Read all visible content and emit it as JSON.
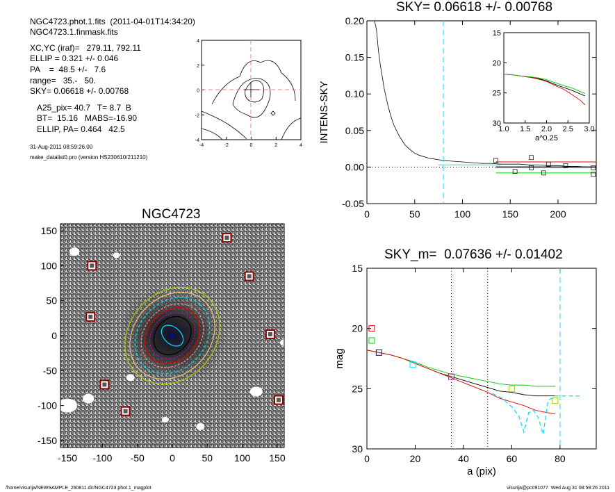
{
  "info": {
    "line1": "NGC4723.phot.1.fits  (2011-04-01T14:34:20)",
    "line2": "NGC4723.1.finmask.fits",
    "line3": "XC,YC (iraf)=   279.11, 792.11",
    "line4": "ELLIP = 0.321 +/- 0.046",
    "line5": "PA    =  48.5 +/-   7.6",
    "line6": "range=   35.-   50.",
    "line7": "SKY= 0.06618 +/- 0.00768",
    "line8": "A25_pix= 40.7   T= 8.7  B",
    "line9": "BT=  15.16   MABS=-16.90",
    "line10": "ELLIP, PA= 0.464   42.5",
    "date": "31-Aug-2011 08:59:26.00",
    "program": "make_datalist0.pro (version HS230610/211210)"
  },
  "footer": {
    "path": "/home/visurija/NEWSAMPLE_260811.dir/NGC4723.phot.1_magplot",
    "user": "visurija@pc091077  Wed Aug 31 08:59:26 2011"
  },
  "colors": {
    "cyan": "#00e5ff",
    "red": "#e60000",
    "green": "#00cc00",
    "yellow": "#b0d000",
    "blue": "#0000cc",
    "pink": "#ff9999",
    "magenta": "#cc00cc"
  },
  "chart_data": [
    {
      "id": "contour",
      "type": "contour",
      "title": "",
      "xlim": [
        -4,
        4
      ],
      "ylim": [
        -4,
        4
      ],
      "xticks": [
        "-4",
        "-2",
        "0",
        "2",
        "4"
      ],
      "yticks": [
        "-4",
        "-2",
        "0",
        "2",
        "4"
      ]
    },
    {
      "id": "sky",
      "type": "line",
      "title": "SKY= 0.06618 +/- 0.00768",
      "xlabel": "",
      "ylabel": "INTENS-SKY",
      "xlim": [
        0,
        240
      ],
      "ylim": [
        -0.05,
        0.2
      ],
      "xticks": [
        "0",
        "50",
        "100",
        "150",
        "200"
      ],
      "yticks": [
        "-0.05",
        "0.00",
        "0.05",
        "0.10",
        "0.15",
        "0.20"
      ],
      "profile": {
        "x": [
          8,
          10,
          12,
          14,
          16,
          18,
          20,
          22,
          25,
          28,
          31,
          34,
          37,
          40,
          45,
          50,
          55,
          60,
          65,
          70,
          75,
          80
        ],
        "y": [
          0.2,
          0.188,
          0.16,
          0.14,
          0.124,
          0.108,
          0.096,
          0.084,
          0.07,
          0.058,
          0.05,
          0.042,
          0.036,
          0.03,
          0.024,
          0.019,
          0.016,
          0.014,
          0.012,
          0.011,
          0.01,
          0.009
        ]
      },
      "profile_outer": {
        "x": [
          80,
          90,
          100,
          110,
          120,
          130,
          140,
          150,
          160,
          170,
          180,
          190,
          200,
          210,
          220,
          230,
          240
        ],
        "y": [
          0.009,
          0.008,
          0.007,
          0.006,
          0.005,
          0.005,
          0.004,
          0.004,
          0.004,
          0.003,
          0.003,
          0.002,
          0.002,
          0.001,
          0.001,
          0.0,
          0.0
        ]
      },
      "vline_x": 80,
      "hlines": [
        {
          "color": "red",
          "y": 0.007,
          "x": [
            135,
            240
          ]
        },
        {
          "color": "black",
          "y": 0.0,
          "x": [
            135,
            240
          ]
        },
        {
          "color": "green",
          "y": -0.008,
          "x": [
            135,
            240
          ]
        },
        {
          "color": "cyan",
          "y": 0.003,
          "x": [
            75,
            140
          ]
        }
      ],
      "squares": {
        "x": [
          135,
          155,
          172,
          172,
          185,
          190,
          208,
          237,
          237
        ],
        "y": [
          0.009,
          -0.006,
          0.013,
          -0.001,
          -0.008,
          0.004,
          0.002,
          -0.001,
          -0.01
        ]
      },
      "inset": {
        "xlabel": "a^0.25",
        "xlim": [
          1.0,
          3.0
        ],
        "ylim": [
          30,
          15
        ],
        "xticks": [
          "1.0",
          "1.5",
          "2.0",
          "2.5",
          "3.0"
        ],
        "yticks": [
          "15",
          "20",
          "25",
          "30"
        ],
        "series": [
          {
            "color": "black",
            "x": [
              1.0,
              1.2,
              1.4,
              1.6,
              1.8,
              2.0,
              2.2,
              2.4,
              2.6,
              2.8,
              2.9
            ],
            "y": [
              21.9,
              22.0,
              22.2,
              22.4,
              22.6,
              23.0,
              23.6,
              24.1,
              24.6,
              25.2,
              25.5
            ]
          },
          {
            "color": "red",
            "x": [
              1.0,
              1.2,
              1.4,
              1.6,
              1.8,
              2.0,
              2.2,
              2.4,
              2.6,
              2.8,
              2.9
            ],
            "y": [
              21.9,
              22.0,
              22.2,
              22.4,
              22.7,
              23.1,
              23.8,
              24.4,
              25.3,
              26.3,
              27.0
            ]
          },
          {
            "color": "green",
            "x": [
              1.0,
              1.2,
              1.4,
              1.6,
              1.8,
              2.0,
              2.2,
              2.4,
              2.6,
              2.8,
              2.9
            ],
            "y": [
              21.9,
              22.0,
              22.2,
              22.3,
              22.5,
              22.8,
              23.3,
              23.8,
              24.2,
              24.8,
              25.1
            ]
          }
        ]
      }
    },
    {
      "id": "image",
      "type": "image",
      "title": "NGC4723",
      "xlim": [
        -160,
        160
      ],
      "ylim": [
        -160,
        160
      ],
      "xticks": [
        "-150",
        "-100",
        "-50",
        "0",
        "50",
        "100",
        "150"
      ],
      "yticks": [
        "-150",
        "-100",
        "-50",
        "0",
        "50",
        "100",
        "150"
      ],
      "masked_sources": {
        "x": [
          78,
          -115,
          110,
          -117,
          140,
          -97,
          -67,
          152
        ],
        "y": [
          140,
          100,
          85,
          27,
          2,
          -70,
          -108,
          -92
        ]
      }
    },
    {
      "id": "mag",
      "type": "line",
      "title": "SKY_m=  0.07636 +/- 0.01402",
      "xlabel": "a (pix)",
      "ylabel": "mag",
      "xlim": [
        0,
        95
      ],
      "ylim": [
        30,
        15
      ],
      "xticks": [
        "0",
        "20",
        "40",
        "60",
        "80"
      ],
      "yticks": [
        "15",
        "20",
        "25",
        "30"
      ],
      "vlines_dotted": [
        35,
        50
      ],
      "vline_dashed": 80,
      "series": [
        {
          "color": "black",
          "x": [
            0,
            5,
            10,
            15,
            20,
            25,
            30,
            35,
            40,
            45,
            50,
            55,
            60,
            65,
            70,
            75,
            78
          ],
          "y": [
            21.8,
            22.0,
            22.2,
            22.5,
            22.9,
            23.3,
            23.7,
            24.0,
            24.3,
            24.6,
            24.9,
            25.2,
            25.3,
            25.5,
            25.6,
            25.6,
            25.6
          ]
        },
        {
          "color": "green",
          "x": [
            0,
            5,
            10,
            15,
            20,
            25,
            30,
            35,
            40,
            45,
            50,
            55,
            60,
            65,
            70,
            75,
            78
          ],
          "y": [
            21.8,
            22.0,
            22.2,
            22.5,
            22.8,
            23.2,
            23.5,
            23.8,
            24.0,
            24.2,
            24.4,
            24.6,
            24.7,
            24.7,
            24.8,
            24.8,
            24.8
          ]
        },
        {
          "color": "red",
          "x": [
            0,
            5,
            10,
            15,
            20,
            25,
            30,
            35,
            40,
            45,
            50,
            55,
            60,
            65,
            70,
            75,
            78
          ],
          "y": [
            21.8,
            22.0,
            22.2,
            22.5,
            22.9,
            23.3,
            23.7,
            24.1,
            24.5,
            24.9,
            25.3,
            25.8,
            26.1,
            26.4,
            26.8,
            27.0,
            27.1
          ]
        },
        {
          "color": "cyan",
          "dashed": true,
          "x": [
            52,
            56,
            60,
            63,
            65,
            67,
            69,
            71,
            73,
            75,
            78,
            82,
            88
          ],
          "y": [
            25.4,
            25.8,
            26.5,
            27.3,
            28.6,
            27.0,
            26.8,
            27.4,
            28.8,
            26.0,
            25.6,
            25.6,
            25.6
          ]
        }
      ],
      "squares": [
        {
          "color": "red",
          "x": 2,
          "y": 20.0
        },
        {
          "color": "green",
          "x": 2,
          "y": 21.0
        },
        {
          "color": "blue",
          "x": 5,
          "y": 22.0
        },
        {
          "color": "cyan",
          "x": 19,
          "y": 23.0
        },
        {
          "color": "magenta",
          "x": 35,
          "y": 24.0
        },
        {
          "color": "yellow",
          "x": 60,
          "y": 25.0
        },
        {
          "color": "yellow",
          "x": 78,
          "y": 26.0
        }
      ]
    }
  ]
}
